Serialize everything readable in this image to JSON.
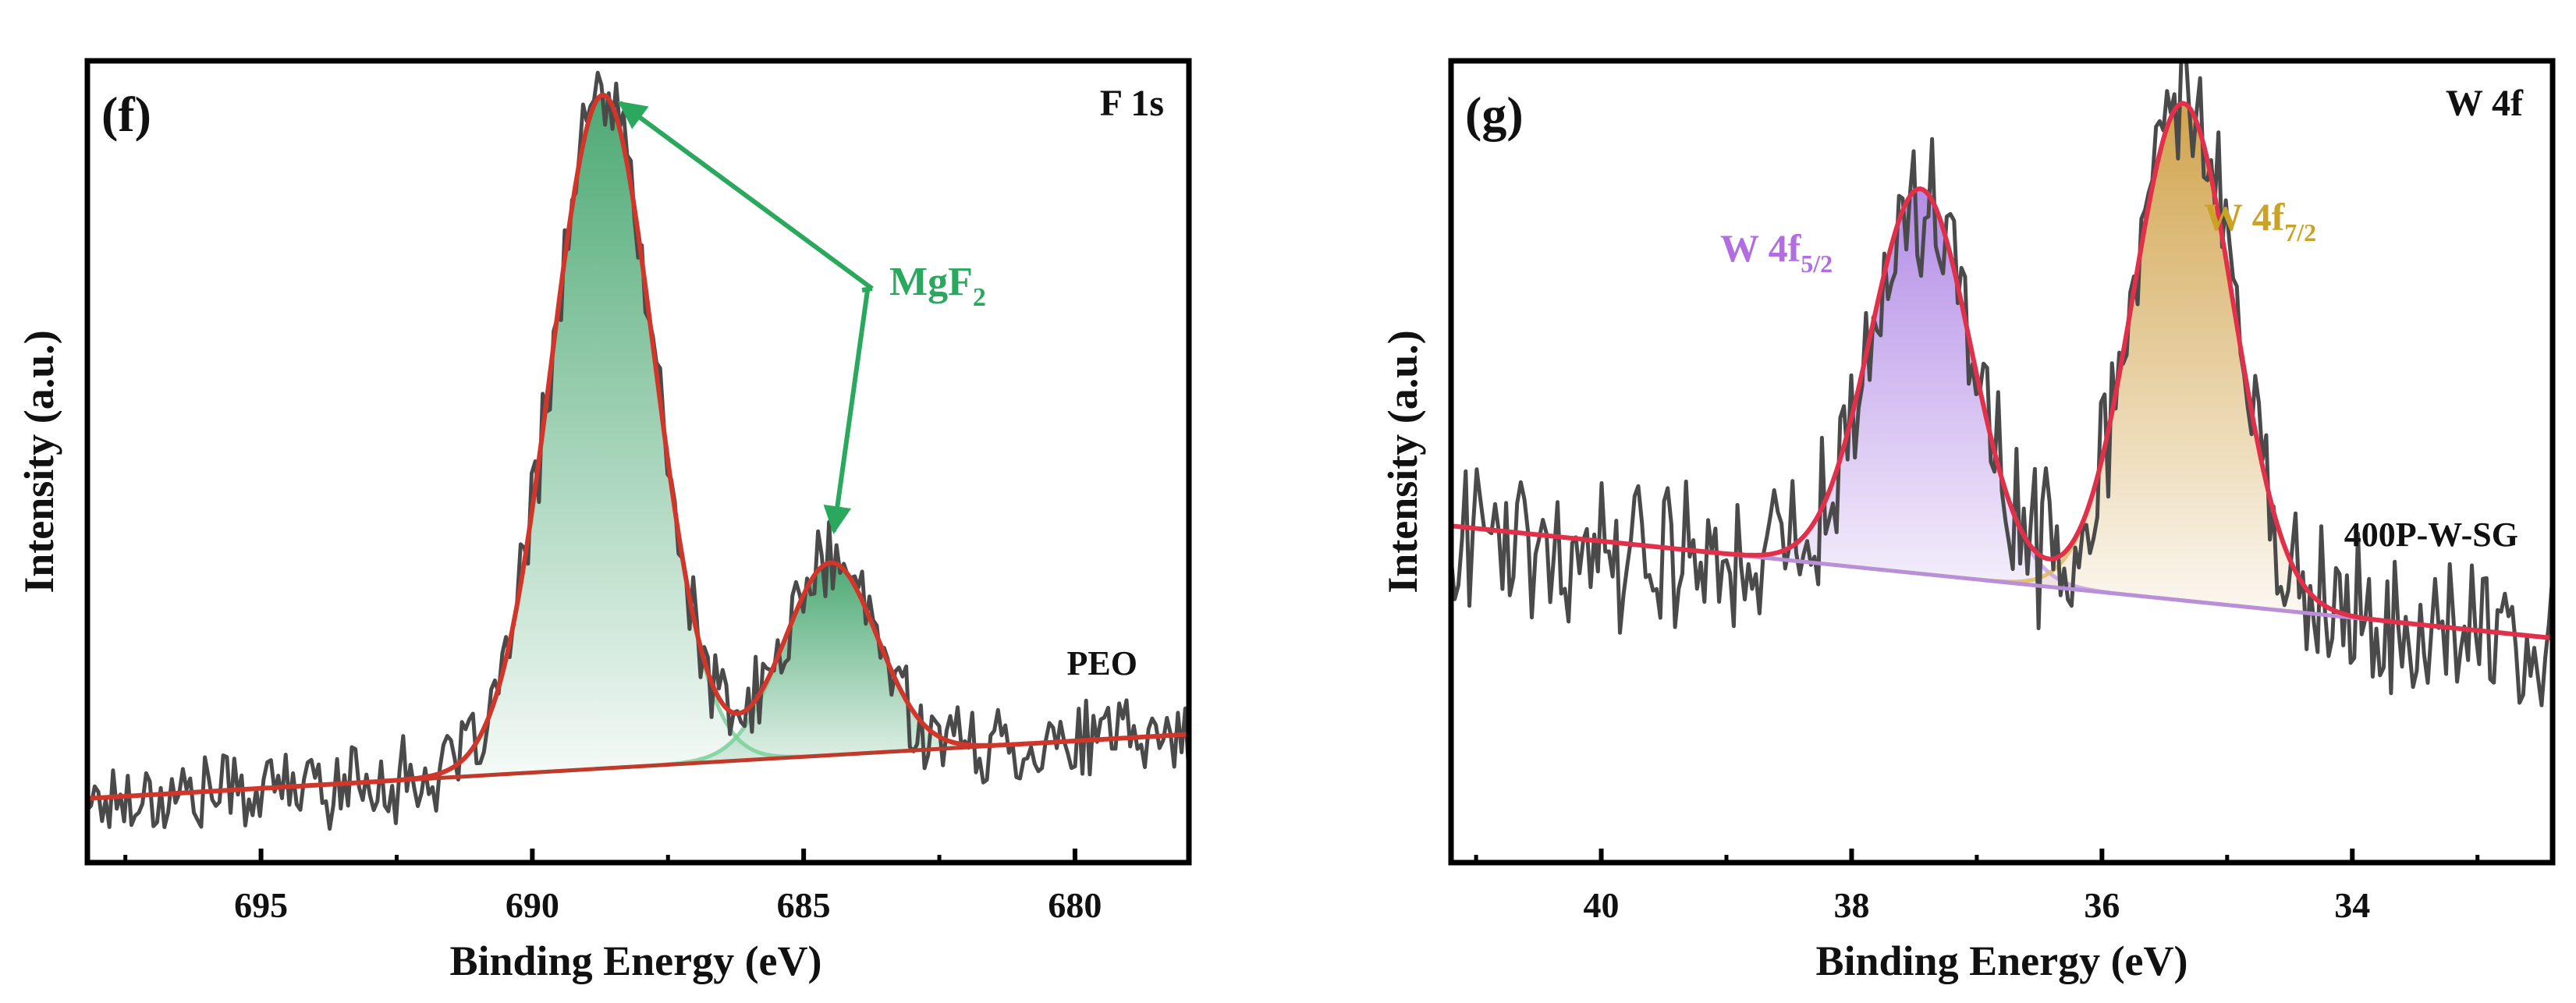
{
  "chart_data": [
    {
      "type": "line",
      "panel_label": "(f)",
      "spectrum_label": "F 1s",
      "sample_label": "PEO",
      "xlabel": "Binding Energy (eV)",
      "ylabel": "Intensity (a.u.)",
      "x_reversed": true,
      "xlim": [
        698.2,
        677.9
      ],
      "ylim": [
        0,
        1
      ],
      "x_ticks": [
        695,
        690,
        685,
        680
      ],
      "y_ticks_shown": false,
      "background_line": {
        "x": [
          698.2,
          677.9
        ],
        "y": [
          0.08,
          0.16
        ]
      },
      "peaks": [
        {
          "name": "MgF2 main",
          "center": 688.7,
          "height": 0.84,
          "sigma": 0.95,
          "color": "#2e9a5c"
        },
        {
          "name": "MgF2 minor",
          "center": 684.5,
          "height": 0.24,
          "sigma": 0.85,
          "color": "#2e9a5c"
        }
      ],
      "noise_amplitude": 0.028,
      "annotation": {
        "text": "MgF",
        "subscript": "2",
        "color": "#2aa95e",
        "arrow_targets": [
          688.7,
          684.5
        ]
      },
      "series": [
        {
          "name": "Raw data",
          "color": "#4a4a4a"
        },
        {
          "name": "Envelope fit",
          "color": "#d0362a"
        },
        {
          "name": "Background",
          "color": "#c0392b"
        },
        {
          "name": "MgF2 component",
          "color": "#2e9a5c"
        }
      ]
    },
    {
      "type": "line",
      "panel_label": "(g)",
      "spectrum_label": "W 4f",
      "sample_label": "400P-W-SG",
      "xlabel": "Binding Energy (eV)",
      "ylabel": "Intensity (a.u.)",
      "x_reversed": true,
      "xlim": [
        41.2,
        32.4
      ],
      "ylim": [
        0,
        1
      ],
      "x_ticks": [
        40,
        38,
        36,
        34
      ],
      "y_ticks_shown": false,
      "background_line": {
        "x": [
          41.2,
          32.4
        ],
        "y": [
          0.42,
          0.28
        ]
      },
      "peaks": [
        {
          "name": "W 4f5/2",
          "center": 37.45,
          "height": 0.48,
          "sigma": 0.4,
          "color": "#b07fe0"
        },
        {
          "name": "W 4f7/2",
          "center": 35.35,
          "height": 0.62,
          "sigma": 0.4,
          "color": "#c9942e"
        }
      ],
      "noise_amplitude": 0.055,
      "annotations": [
        {
          "text": "W 4f",
          "subscript": "5/2",
          "color": "#b06ee0"
        },
        {
          "text": "W 4f",
          "subscript": "7/2",
          "color": "#c9a227"
        }
      ],
      "series": [
        {
          "name": "Raw data",
          "color": "#4a4a4a"
        },
        {
          "name": "Envelope fit",
          "color": "#e0304a"
        },
        {
          "name": "W 4f5/2 component",
          "color": "#c8a0ea"
        },
        {
          "name": "W 4f7/2 component",
          "color": "#e0b860"
        }
      ]
    }
  ]
}
